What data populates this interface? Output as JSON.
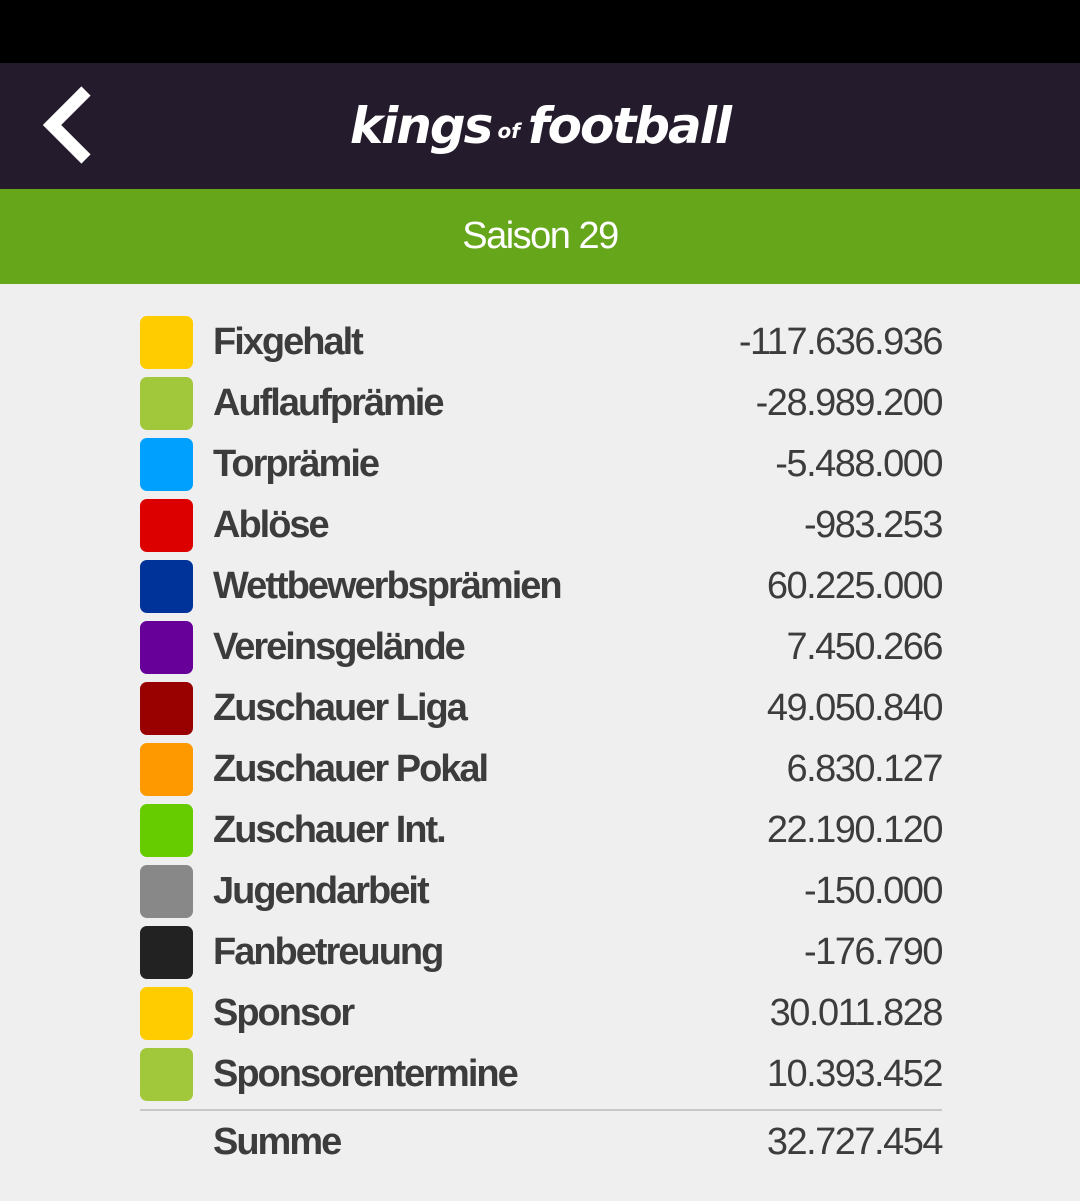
{
  "app": {
    "logo_main": "kings",
    "logo_of": "of",
    "logo_end": "football"
  },
  "header": {
    "back_icon": "chevron-left-icon"
  },
  "season": {
    "title": "Saison 29"
  },
  "finances": [
    {
      "label": "Fixgehalt",
      "value": "-117.636.936",
      "color": "#ffcc00"
    },
    {
      "label": "Auflaufprämie",
      "value": "-28.989.200",
      "color": "#a0c83a"
    },
    {
      "label": "Torprämie",
      "value": "-5.488.000",
      "color": "#00a0ff"
    },
    {
      "label": "Ablöse",
      "value": "-983.253",
      "color": "#dd0000"
    },
    {
      "label": "Wettbewerbsprämien",
      "value": "60.225.000",
      "color": "#003399"
    },
    {
      "label": "Vereinsgelände",
      "value": "7.450.266",
      "color": "#660099"
    },
    {
      "label": "Zuschauer Liga",
      "value": "49.050.840",
      "color": "#990000"
    },
    {
      "label": "Zuschauer Pokal",
      "value": "6.830.127",
      "color": "#ff9900"
    },
    {
      "label": "Zuschauer Int.",
      "value": "22.190.120",
      "color": "#66cc00"
    },
    {
      "label": "Jugendarbeit",
      "value": "-150.000",
      "color": "#888888"
    },
    {
      "label": "Fanbetreuung",
      "value": "-176.790",
      "color": "#222222"
    },
    {
      "label": "Sponsor",
      "value": "30.011.828",
      "color": "#ffcc00"
    },
    {
      "label": "Sponsorentermine",
      "value": "10.393.452",
      "color": "#a0c83a"
    }
  ],
  "summary": {
    "label": "Summe",
    "value": "32.727.454"
  }
}
